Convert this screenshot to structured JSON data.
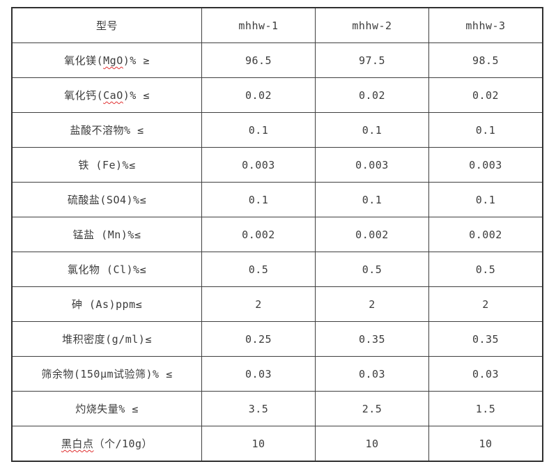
{
  "table": {
    "header": {
      "label": "型号",
      "columns": [
        "mhhw-1",
        "mhhw-2",
        "mhhw-3"
      ]
    },
    "rows": [
      {
        "label_pre": "氧化镁(",
        "label_wavy": "MgO",
        "label_post": ")% ≥",
        "values": [
          "96.5",
          "97.5",
          "98.5"
        ]
      },
      {
        "label_pre": "氧化钙(",
        "label_wavy": "CaO",
        "label_post": ")% ≤",
        "values": [
          "0.02",
          "0.02",
          "0.02"
        ]
      },
      {
        "label_pre": "盐酸不溶物% ≤",
        "label_wavy": "",
        "label_post": "",
        "values": [
          "0.1",
          "0.1",
          "0.1"
        ]
      },
      {
        "label_pre": "铁 (Fe)%≤",
        "label_wavy": "",
        "label_post": "",
        "values": [
          "0.003",
          "0.003",
          "0.003"
        ]
      },
      {
        "label_pre": "硫酸盐(SO4)%≤",
        "label_wavy": "",
        "label_post": "",
        "values": [
          "0.1",
          "0.1",
          "0.1"
        ]
      },
      {
        "label_pre": "锰盐 (Mn)%≤",
        "label_wavy": "",
        "label_post": "",
        "values": [
          "0.002",
          "0.002",
          "0.002"
        ]
      },
      {
        "label_pre": "氯化物 (Cl)%≤",
        "label_wavy": "",
        "label_post": "",
        "values": [
          "0.5",
          "0.5",
          "0.5"
        ]
      },
      {
        "label_pre": "砷 (As)ppm≤",
        "label_wavy": "",
        "label_post": "",
        "values": [
          "2",
          "2",
          "2"
        ]
      },
      {
        "label_pre": "堆积密度(g/ml)≤",
        "label_wavy": "",
        "label_post": "",
        "values": [
          "0.25",
          "0.35",
          "0.35"
        ]
      },
      {
        "label_pre": "筛余物(150μm试验筛)% ≤",
        "label_wavy": "",
        "label_post": "",
        "values": [
          "0.03",
          "0.03",
          "0.03"
        ]
      },
      {
        "label_pre": "灼烧失量% ≤",
        "label_wavy": "",
        "label_post": "",
        "values": [
          "3.5",
          "2.5",
          "1.5"
        ]
      },
      {
        "label_pre": "",
        "label_wavy": "黑白点",
        "label_post": "（个/10g）",
        "values": [
          "10",
          "10",
          "10"
        ]
      }
    ]
  },
  "colors": {
    "border": "#3f3f3f",
    "text": "#3c3c3c",
    "squiggle": "#e03030",
    "background": "#ffffff"
  }
}
